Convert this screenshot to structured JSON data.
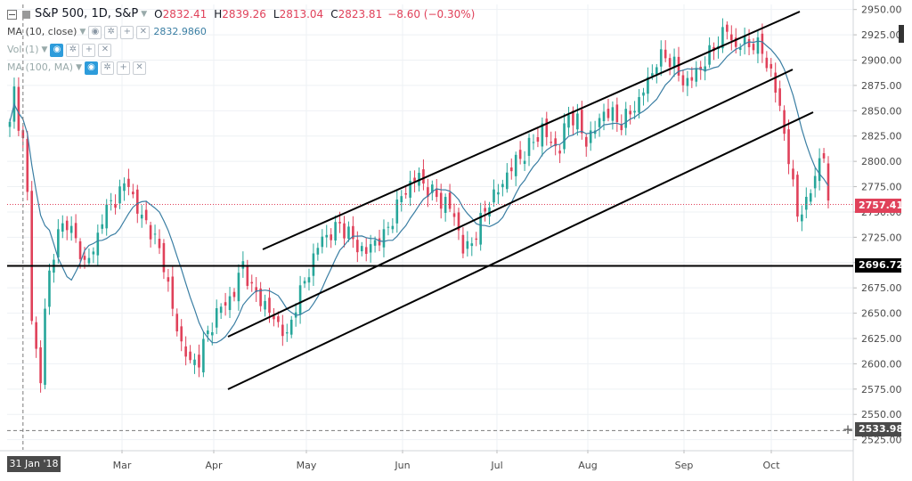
{
  "legend": {
    "symbol": "S&P 500, 1D, S&P",
    "open_label": "O",
    "open": "2832.41",
    "high_label": "H",
    "high": "2839.26",
    "low_label": "L",
    "low": "2813.04",
    "close_label": "C",
    "close": "2823.81",
    "change": "−8.60 (−0.30%)",
    "indicators": [
      {
        "label": "MA (10, close)",
        "value": "2832.9860"
      },
      {
        "label": "Vol (1)",
        "value": ""
      },
      {
        "label": "MA (100, MA)",
        "value": ""
      }
    ]
  },
  "colors": {
    "up": "#26a69a",
    "down": "#e0415a",
    "ma": "#3a7ea3",
    "grid": "#eef1f4",
    "axis_text": "#4a4a4a",
    "trendline": "#000000",
    "last_price_line": "#e0415a",
    "crosshair": "#7a7a7a"
  },
  "price_tags": {
    "last": "2757.41",
    "support": "2696.72",
    "crosshair": "2533.98"
  },
  "date_tag": "31 Jan '18",
  "chart_data": {
    "type": "candlestick",
    "title": "",
    "ylim": [
      2515,
      2955
    ],
    "y_ticks": [
      2525,
      2550,
      2575,
      2600,
      2625,
      2650,
      2675,
      2700,
      2725,
      2750,
      2775,
      2800,
      2825,
      2850,
      2875,
      2900,
      2925,
      2950
    ],
    "x_labels": [
      {
        "label": "Mar",
        "t": 1.0
      },
      {
        "label": "Apr",
        "t": 2.0
      },
      {
        "label": "May",
        "t": 3.0
      },
      {
        "label": "Jun",
        "t": 4.0
      },
      {
        "label": "Jul",
        "t": 5.0
      },
      {
        "label": "Aug",
        "t": 6.0
      },
      {
        "label": "Sep",
        "t": 7.0
      },
      {
        "label": "Oct",
        "t": 8.0
      }
    ],
    "horizontal_lines": [
      {
        "value": 2696.72,
        "style": "solid"
      },
      {
        "value": 2757.41,
        "style": "dotted"
      },
      {
        "value": 2533.98,
        "style": "dashed"
      }
    ],
    "anchors": [
      [
        0,
        2835
      ],
      [
        1,
        2870
      ],
      [
        2,
        2840
      ],
      [
        3,
        2818
      ],
      [
        4,
        2765
      ],
      [
        5,
        2650
      ],
      [
        6,
        2612
      ],
      [
        7,
        2580
      ],
      [
        8,
        2655
      ],
      [
        9,
        2690
      ],
      [
        11,
        2728
      ],
      [
        13,
        2742
      ],
      [
        15,
        2720
      ],
      [
        17,
        2700
      ],
      [
        19,
        2710
      ],
      [
        21,
        2745
      ],
      [
        23,
        2758
      ],
      [
        25,
        2770
      ],
      [
        27,
        2780
      ],
      [
        29,
        2750
      ],
      [
        31,
        2740
      ],
      [
        33,
        2722
      ],
      [
        35,
        2700
      ],
      [
        37,
        2652
      ],
      [
        39,
        2620
      ],
      [
        41,
        2600
      ],
      [
        43,
        2605
      ],
      [
        45,
        2630
      ],
      [
        47,
        2650
      ],
      [
        49,
        2660
      ],
      [
        51,
        2670
      ],
      [
        53,
        2700
      ],
      [
        55,
        2672
      ],
      [
        57,
        2665
      ],
      [
        59,
        2650
      ],
      [
        61,
        2640
      ],
      [
        63,
        2625
      ],
      [
        65,
        2660
      ],
      [
        67,
        2680
      ],
      [
        69,
        2705
      ],
      [
        71,
        2725
      ],
      [
        73,
        2728
      ],
      [
        75,
        2738
      ],
      [
        77,
        2728
      ],
      [
        79,
        2716
      ],
      [
        81,
        2710
      ],
      [
        83,
        2722
      ],
      [
        85,
        2725
      ],
      [
        87,
        2745
      ],
      [
        89,
        2765
      ],
      [
        91,
        2778
      ],
      [
        93,
        2785
      ],
      [
        95,
        2772
      ],
      [
        97,
        2765
      ],
      [
        99,
        2758
      ],
      [
        101,
        2748
      ],
      [
        103,
        2712
      ],
      [
        105,
        2720
      ],
      [
        107,
        2740
      ],
      [
        109,
        2762
      ],
      [
        111,
        2770
      ],
      [
        113,
        2788
      ],
      [
        115,
        2800
      ],
      [
        117,
        2808
      ],
      [
        119,
        2820
      ],
      [
        121,
        2832
      ],
      [
        123,
        2818
      ],
      [
        125,
        2812
      ],
      [
        127,
        2848
      ],
      [
        129,
        2838
      ],
      [
        131,
        2820
      ],
      [
        133,
        2832
      ],
      [
        135,
        2850
      ],
      [
        137,
        2845
      ],
      [
        139,
        2838
      ],
      [
        141,
        2848
      ],
      [
        143,
        2860
      ],
      [
        145,
        2880
      ],
      [
        147,
        2898
      ],
      [
        149,
        2905
      ],
      [
        151,
        2895
      ],
      [
        153,
        2878
      ],
      [
        155,
        2882
      ],
      [
        157,
        2893
      ],
      [
        159,
        2905
      ],
      [
        161,
        2920
      ],
      [
        163,
        2930
      ],
      [
        165,
        2912
      ],
      [
        167,
        2918
      ],
      [
        169,
        2915
      ],
      [
        171,
        2910
      ],
      [
        173,
        2885
      ],
      [
        175,
        2855
      ],
      [
        177,
        2800
      ],
      [
        179,
        2750
      ],
      [
        181,
        2755
      ],
      [
        183,
        2790
      ],
      [
        185,
        2805
      ],
      [
        186,
        2760
      ]
    ],
    "anchor_time_scale": "trading day index from Jan 26 to Oct 19",
    "ma_period": 10
  }
}
